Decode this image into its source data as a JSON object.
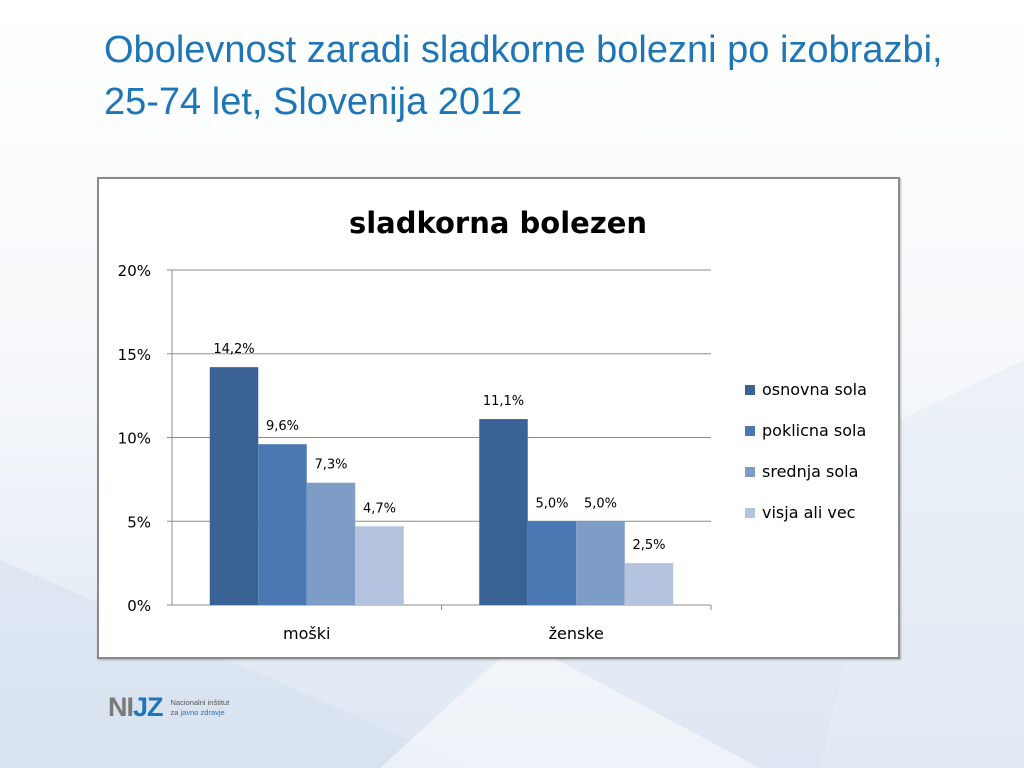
{
  "slide": {
    "title": "Obolevnost zaradi sladkorne bolezni po izobrazbi, 25-74 let, Slovenija 2012"
  },
  "logo": {
    "mark_left": "NI",
    "mark_right": "JZ",
    "line1": "Nacionalni inštitut",
    "line2_a": "za ",
    "line2_b": "javno zdravje"
  },
  "colors": {
    "title": "#1d76b8",
    "series": [
      "#3b6295",
      "#4a78b3",
      "#7d9cc6",
      "#b4c4df"
    ]
  },
  "chart_data": {
    "type": "bar",
    "title": "sladkorna bolezen",
    "categories": [
      "moški",
      "ženske"
    ],
    "series": [
      {
        "name": "osnovna sola",
        "values": [
          14.2,
          11.1
        ],
        "labels": [
          "14,2%",
          "11,1%"
        ]
      },
      {
        "name": "poklicna sola",
        "values": [
          9.6,
          5.0
        ],
        "labels": [
          "9,6%",
          "5,0%"
        ]
      },
      {
        "name": "srednja sola",
        "values": [
          7.3,
          5.0
        ],
        "labels": [
          "7,3%",
          "5,0%"
        ]
      },
      {
        "name": "visja ali vec",
        "values": [
          4.7,
          2.5
        ],
        "labels": [
          "4,7%",
          "2,5%"
        ]
      }
    ],
    "y_ticks": [
      {
        "value": 0,
        "label": "0%"
      },
      {
        "value": 5,
        "label": "5%"
      },
      {
        "value": 10,
        "label": "10%"
      },
      {
        "value": 15,
        "label": "15%"
      },
      {
        "value": 20,
        "label": "20%"
      }
    ],
    "ylim": [
      0,
      20
    ],
    "grid": true,
    "legend_position": "right"
  }
}
